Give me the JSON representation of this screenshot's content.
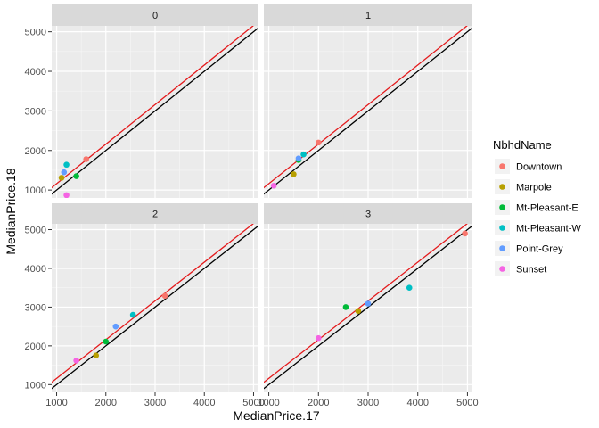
{
  "chart_data": {
    "type": "scatter",
    "xlabel": "MedianPrice.17",
    "ylabel": "MedianPrice.18",
    "xlim": [
      900,
      5100
    ],
    "ylim": [
      800,
      5150
    ],
    "x_ticks": [
      1000,
      2000,
      3000,
      4000,
      5000
    ],
    "y_ticks": [
      1000,
      2000,
      3000,
      4000,
      5000
    ],
    "legend": {
      "title": "NbhdName",
      "placement": "right",
      "entries": [
        {
          "name": "Downtown",
          "color": "#F8766D"
        },
        {
          "name": "Marpole",
          "color": "#B79F00"
        },
        {
          "name": "Mt-Pleasant-E",
          "color": "#00BA38"
        },
        {
          "name": "Mt-Pleasant-W",
          "color": "#00BFC4"
        },
        {
          "name": "Point-Grey",
          "color": "#619CFF"
        },
        {
          "name": "Sunset",
          "color": "#F564E3"
        }
      ]
    },
    "reference_lines": [
      {
        "color": "#000000",
        "intercept": 0,
        "slope": 1
      },
      {
        "color": "#E41A1C",
        "intercept": 160,
        "slope": 1
      }
    ],
    "facets": [
      {
        "label": "0",
        "points": [
          {
            "group": "Downtown",
            "x": 1600,
            "y": 1780
          },
          {
            "group": "Marpole",
            "x": 1100,
            "y": 1310
          },
          {
            "group": "Mt-Pleasant-E",
            "x": 1400,
            "y": 1350
          },
          {
            "group": "Mt-Pleasant-W",
            "x": 1200,
            "y": 1640
          },
          {
            "group": "Point-Grey",
            "x": 1150,
            "y": 1450
          },
          {
            "group": "Sunset",
            "x": 1200,
            "y": 870
          }
        ]
      },
      {
        "label": "1",
        "points": [
          {
            "group": "Downtown",
            "x": 2000,
            "y": 2200
          },
          {
            "group": "Marpole",
            "x": 1500,
            "y": 1400
          },
          {
            "group": "Mt-Pleasant-E",
            "x": 1600,
            "y": 1760
          },
          {
            "group": "Mt-Pleasant-W",
            "x": 1700,
            "y": 1900
          },
          {
            "group": "Point-Grey",
            "x": 1600,
            "y": 1800
          },
          {
            "group": "Sunset",
            "x": 1100,
            "y": 1110
          }
        ]
      },
      {
        "label": "2",
        "points": [
          {
            "group": "Downtown",
            "x": 3200,
            "y": 3290
          },
          {
            "group": "Marpole",
            "x": 1800,
            "y": 1750
          },
          {
            "group": "Mt-Pleasant-E",
            "x": 2000,
            "y": 2110
          },
          {
            "group": "Mt-Pleasant-W",
            "x": 2550,
            "y": 2800
          },
          {
            "group": "Point-Grey",
            "x": 2200,
            "y": 2500
          },
          {
            "group": "Sunset",
            "x": 1400,
            "y": 1620
          }
        ]
      },
      {
        "label": "3",
        "points": [
          {
            "group": "Downtown",
            "x": 4950,
            "y": 4900
          },
          {
            "group": "Marpole",
            "x": 2800,
            "y": 2900
          },
          {
            "group": "Mt-Pleasant-E",
            "x": 2550,
            "y": 3000
          },
          {
            "group": "Mt-Pleasant-W",
            "x": 3830,
            "y": 3500
          },
          {
            "group": "Point-Grey",
            "x": 3000,
            "y": 3090
          },
          {
            "group": "Sunset",
            "x": 2000,
            "y": 2200
          }
        ]
      }
    ]
  }
}
